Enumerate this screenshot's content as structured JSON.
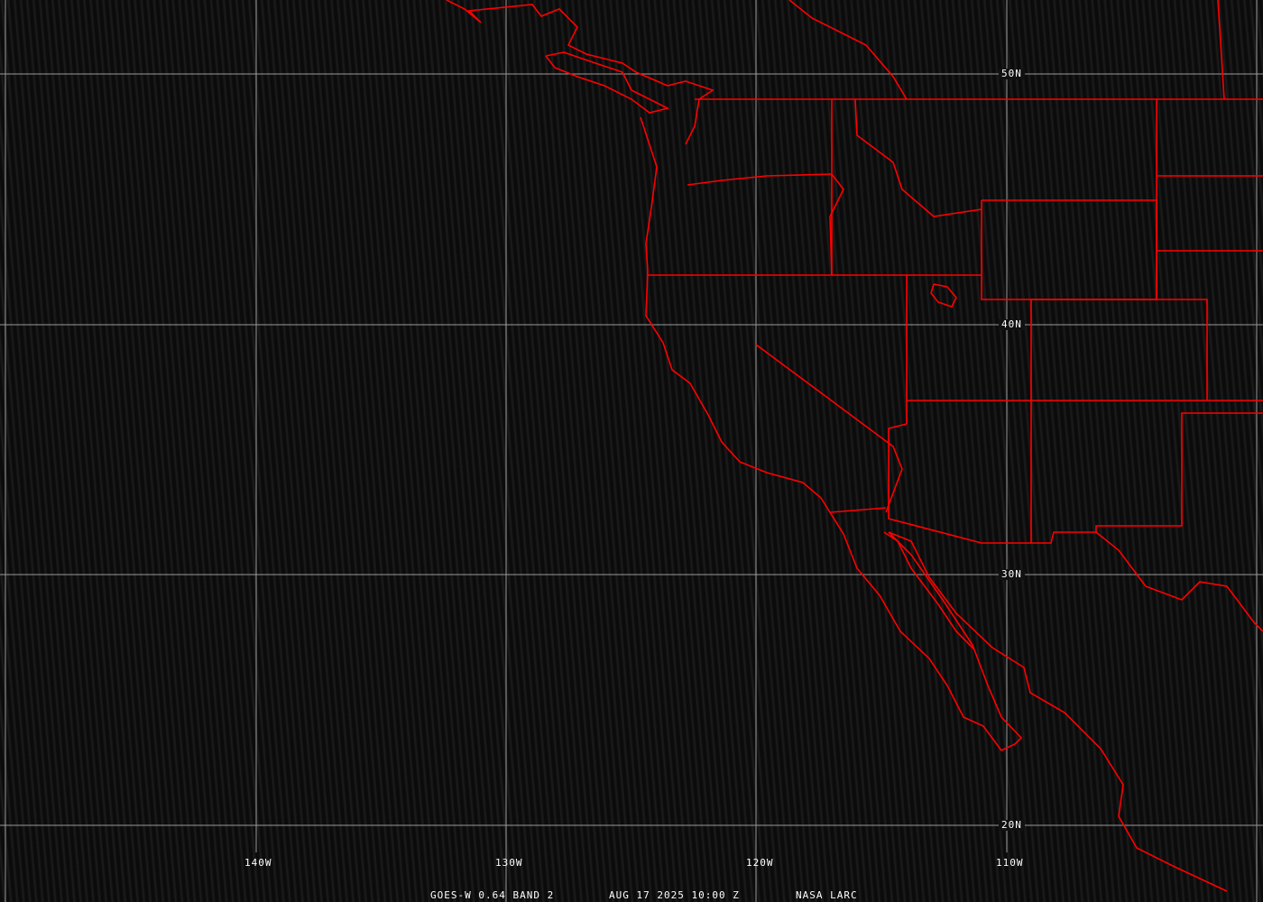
{
  "image": {
    "type": "satellite-map",
    "colors": {
      "borders": "#ff0000",
      "grid": "#9a9a9a",
      "text": "#ffffff"
    }
  },
  "grid": {
    "longitudes": [
      "140W",
      "130W",
      "120W",
      "110W"
    ],
    "latitudes": [
      "50N",
      "40N",
      "30N",
      "20N"
    ]
  },
  "footer": {
    "satellite": "GOES-W 0.64 BAND 2",
    "datetime": "AUG 17 2025 10:00 Z",
    "credit": "NASA LARC"
  }
}
